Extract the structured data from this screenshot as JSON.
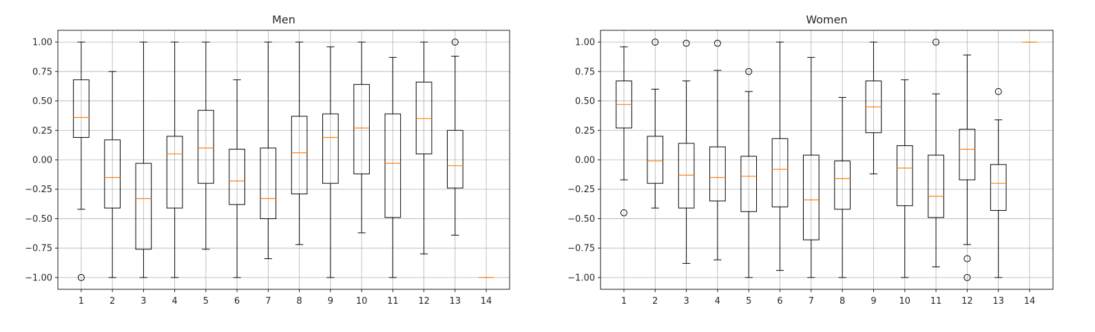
{
  "chart_data": [
    {
      "type": "boxplot",
      "title": "Men",
      "xlabel": "",
      "ylabel": "",
      "ylim": [
        -1.1,
        1.1
      ],
      "yticks": [
        1.0,
        0.75,
        0.5,
        0.25,
        0.0,
        -0.25,
        -0.5,
        -0.75,
        -1.0
      ],
      "ytick_labels": [
        "1.00",
        "0.75",
        "0.50",
        "0.25",
        "0.00",
        "−0.25",
        "−0.50",
        "−0.75",
        "−1.00"
      ],
      "categories": [
        "1",
        "2",
        "3",
        "4",
        "5",
        "6",
        "7",
        "8",
        "9",
        "10",
        "11",
        "12",
        "13",
        "14"
      ],
      "grid": true,
      "boxes": [
        {
          "whislo": -0.42,
          "q1": 0.19,
          "med": 0.36,
          "q3": 0.68,
          "whishi": 1.0,
          "fliers": [
            -1.0
          ]
        },
        {
          "whislo": -1.0,
          "q1": -0.41,
          "med": -0.15,
          "q3": 0.17,
          "whishi": 0.75,
          "fliers": []
        },
        {
          "whislo": -1.0,
          "q1": -0.76,
          "med": -0.33,
          "q3": -0.03,
          "whishi": 1.0,
          "fliers": []
        },
        {
          "whislo": -1.0,
          "q1": -0.41,
          "med": 0.05,
          "q3": 0.2,
          "whishi": 1.0,
          "fliers": []
        },
        {
          "whislo": -0.76,
          "q1": -0.2,
          "med": 0.1,
          "q3": 0.42,
          "whishi": 1.0,
          "fliers": []
        },
        {
          "whislo": -1.0,
          "q1": -0.38,
          "med": -0.18,
          "q3": 0.09,
          "whishi": 0.68,
          "fliers": []
        },
        {
          "whislo": -0.84,
          "q1": -0.5,
          "med": -0.33,
          "q3": 0.1,
          "whishi": 1.0,
          "fliers": []
        },
        {
          "whislo": -0.72,
          "q1": -0.29,
          "med": 0.06,
          "q3": 0.37,
          "whishi": 1.0,
          "fliers": []
        },
        {
          "whislo": -1.0,
          "q1": -0.2,
          "med": 0.19,
          "q3": 0.39,
          "whishi": 0.96,
          "fliers": []
        },
        {
          "whislo": -0.62,
          "q1": -0.12,
          "med": 0.27,
          "q3": 0.64,
          "whishi": 1.0,
          "fliers": []
        },
        {
          "whislo": -1.0,
          "q1": -0.49,
          "med": -0.03,
          "q3": 0.39,
          "whishi": 0.87,
          "fliers": []
        },
        {
          "whislo": -0.8,
          "q1": 0.05,
          "med": 0.35,
          "q3": 0.66,
          "whishi": 1.0,
          "fliers": []
        },
        {
          "whislo": -0.64,
          "q1": -0.24,
          "med": -0.05,
          "q3": 0.25,
          "whishi": 0.88,
          "fliers": [
            1.0
          ]
        },
        {
          "whislo": -1.0,
          "q1": -1.0,
          "med": -1.0,
          "q3": -1.0,
          "whishi": -1.0,
          "fliers": []
        }
      ]
    },
    {
      "type": "boxplot",
      "title": "Women",
      "xlabel": "",
      "ylabel": "",
      "ylim": [
        -1.1,
        1.1
      ],
      "yticks": [
        1.0,
        0.75,
        0.5,
        0.25,
        0.0,
        -0.25,
        -0.5,
        -0.75,
        -1.0
      ],
      "ytick_labels": [
        "1.00",
        "0.75",
        "0.50",
        "0.25",
        "0.00",
        "−0.25",
        "−0.50",
        "−0.75",
        "−1.00"
      ],
      "categories": [
        "1",
        "2",
        "3",
        "4",
        "5",
        "6",
        "7",
        "8",
        "9",
        "10",
        "11",
        "12",
        "13",
        "14"
      ],
      "grid": true,
      "boxes": [
        {
          "whislo": -0.17,
          "q1": 0.27,
          "med": 0.47,
          "q3": 0.67,
          "whishi": 0.96,
          "fliers": [
            -0.45
          ]
        },
        {
          "whislo": -0.41,
          "q1": -0.2,
          "med": -0.01,
          "q3": 0.2,
          "whishi": 0.6,
          "fliers": [
            1.0
          ]
        },
        {
          "whislo": -0.88,
          "q1": -0.41,
          "med": -0.13,
          "q3": 0.14,
          "whishi": 0.67,
          "fliers": [
            0.99
          ]
        },
        {
          "whislo": -0.85,
          "q1": -0.35,
          "med": -0.15,
          "q3": 0.11,
          "whishi": 0.76,
          "fliers": [
            0.99
          ]
        },
        {
          "whislo": -1.0,
          "q1": -0.44,
          "med": -0.14,
          "q3": 0.03,
          "whishi": 0.58,
          "fliers": [
            0.75
          ]
        },
        {
          "whislo": -0.94,
          "q1": -0.4,
          "med": -0.08,
          "q3": 0.18,
          "whishi": 1.0,
          "fliers": []
        },
        {
          "whislo": -1.0,
          "q1": -0.68,
          "med": -0.34,
          "q3": 0.04,
          "whishi": 0.87,
          "fliers": []
        },
        {
          "whislo": -1.0,
          "q1": -0.42,
          "med": -0.16,
          "q3": -0.01,
          "whishi": 0.53,
          "fliers": []
        },
        {
          "whislo": -0.12,
          "q1": 0.23,
          "med": 0.45,
          "q3": 0.67,
          "whishi": 1.0,
          "fliers": []
        },
        {
          "whislo": -1.0,
          "q1": -0.39,
          "med": -0.07,
          "q3": 0.12,
          "whishi": 0.68,
          "fliers": []
        },
        {
          "whislo": -0.91,
          "q1": -0.49,
          "med": -0.31,
          "q3": 0.04,
          "whishi": 0.56,
          "fliers": [
            1.0
          ]
        },
        {
          "whislo": -0.72,
          "q1": -0.17,
          "med": 0.09,
          "q3": 0.26,
          "whishi": 0.89,
          "fliers": [
            -0.84,
            -1.0
          ]
        },
        {
          "whislo": -1.0,
          "q1": -0.43,
          "med": -0.2,
          "q3": -0.04,
          "whishi": 0.34,
          "fliers": [
            0.58
          ]
        },
        {
          "whislo": 1.0,
          "q1": 1.0,
          "med": 1.0,
          "q3": 1.0,
          "whishi": 1.0,
          "fliers": []
        }
      ]
    }
  ],
  "colors": {
    "box": "#000000",
    "median": "#ff7f0e",
    "grid": "#b0b0b0",
    "flier": "#000000"
  }
}
